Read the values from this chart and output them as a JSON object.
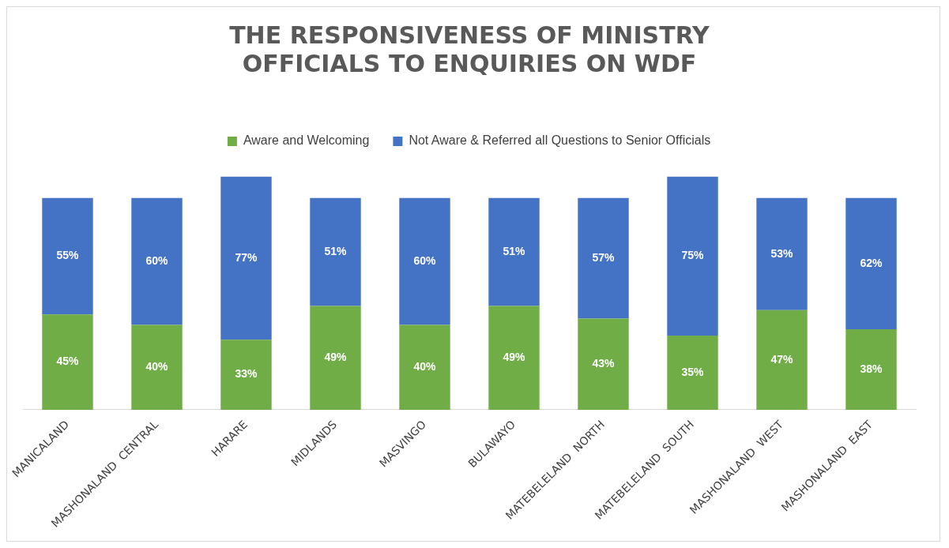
{
  "chart_data": {
    "type": "bar",
    "title": "THE RESPONSIVENESS OF MINISTRY OFFICIALS TO ENQUIRIES ON WDF",
    "categories": [
      "MANICALAND",
      "MASHONALAND  CENTRAL",
      "HARARE",
      "MIDLANDS",
      "MASVINGO",
      "BULAWAYO",
      "MATEBELELAND  NORTH",
      "MATEBELELAND  SOUTH",
      "MASHONALAND  WEST",
      "MASHONALAND  EAST"
    ],
    "series": [
      {
        "name": "Aware and Welcoming",
        "color": "#70ad47",
        "values": [
          45,
          40,
          33,
          49,
          40,
          49,
          43,
          35,
          47,
          38
        ],
        "value_labels": [
          "45%",
          "40%",
          "33%",
          "49%",
          "40%",
          "49%",
          "43%",
          "35%",
          "47%",
          "38%"
        ]
      },
      {
        "name": "Not Aware & Referred all Questions to Senior Officials",
        "color": "#4472c4",
        "values": [
          55,
          60,
          77,
          51,
          60,
          51,
          57,
          75,
          53,
          62
        ],
        "value_labels": [
          "55%",
          "60%",
          "77%",
          "51%",
          "60%",
          "51%",
          "57%",
          "75%",
          "53%",
          "62%"
        ]
      }
    ],
    "stacked": true,
    "legend": "top",
    "grid": false,
    "tick_labels": "x"
  }
}
